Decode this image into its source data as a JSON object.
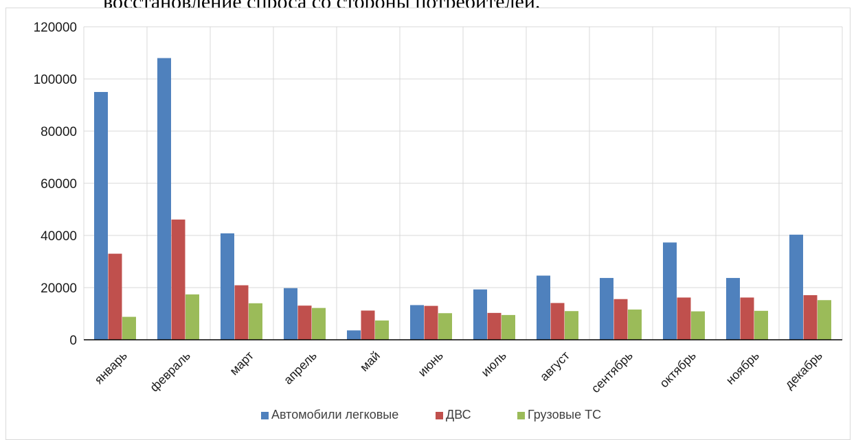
{
  "header_text": "восстановление спроса со стороны потребителей.",
  "chart_data": {
    "type": "bar",
    "categories": [
      "январь",
      "февраль",
      "март",
      "апрель",
      "май",
      "июнь",
      "июль",
      "август",
      "сентябрь",
      "октябрь",
      "ноябрь",
      "декабрь"
    ],
    "series": [
      {
        "name": "Автомобили легковые",
        "color": "#4f81bd",
        "values": [
          95000,
          108000,
          40800,
          19800,
          3600,
          13300,
          19300,
          24600,
          23700,
          37300,
          23700,
          40300
        ]
      },
      {
        "name": "ДВС",
        "color": "#c0504d",
        "values": [
          33000,
          46100,
          20900,
          13100,
          11200,
          13000,
          10300,
          14100,
          15600,
          16200,
          16200,
          17100
        ]
      },
      {
        "name": "Грузовые ТС",
        "color": "#9bbb59",
        "values": [
          8800,
          17400,
          14000,
          12200,
          7400,
          10200,
          9500,
          11000,
          11600,
          10900,
          11100,
          15200
        ]
      }
    ],
    "yticks": [
      0,
      20000,
      40000,
      60000,
      80000,
      100000,
      120000
    ],
    "ylim": [
      0,
      120000
    ],
    "grid": true,
    "legend_position": "bottom",
    "title": "",
    "xlabel": "",
    "ylabel": ""
  }
}
